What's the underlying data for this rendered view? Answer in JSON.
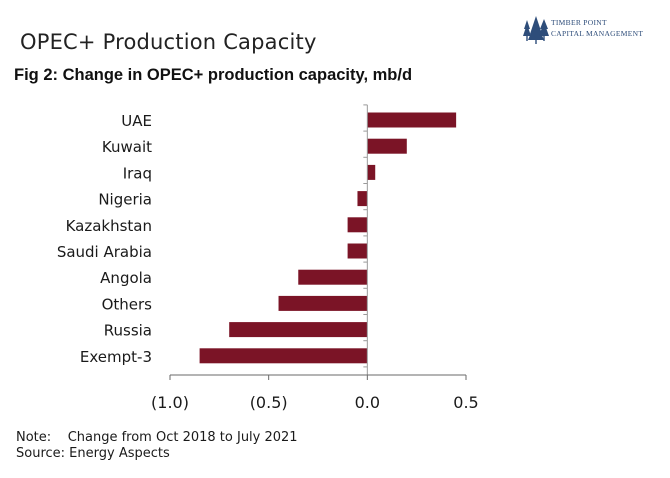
{
  "slide_title": "OPEC+ Production Capacity",
  "logo": {
    "line1": "TIMBER POINT",
    "line2": "CAPITAL MANAGEMENT",
    "color": "#2e4d7a"
  },
  "chart_data": {
    "type": "bar",
    "orientation": "horizontal",
    "title": "Fig 2: Change in OPEC+ production capacity, mb/d",
    "categories": [
      "UAE",
      "Kuwait",
      "Iraq",
      "Nigeria",
      "Kazakhstan",
      "Saudi Arabia",
      "Angola",
      "Others",
      "Russia",
      "Exempt-3"
    ],
    "values": [
      0.45,
      0.2,
      0.04,
      -0.05,
      -0.1,
      -0.1,
      -0.35,
      -0.45,
      -0.7,
      -0.85
    ],
    "xlim": [
      -1.0,
      0.5
    ],
    "xticks": [
      -1.0,
      -0.5,
      0.0,
      0.5
    ],
    "xtick_labels": [
      "(1.0)",
      "(0.5)",
      "0.0",
      "0.5"
    ],
    "bar_color": "#7b1426",
    "grid": false
  },
  "footnote": {
    "note_label": "Note:",
    "note_text": "Change from Oct 2018 to July 2021",
    "source_label": "Source:",
    "source_text": "Energy Aspects"
  }
}
